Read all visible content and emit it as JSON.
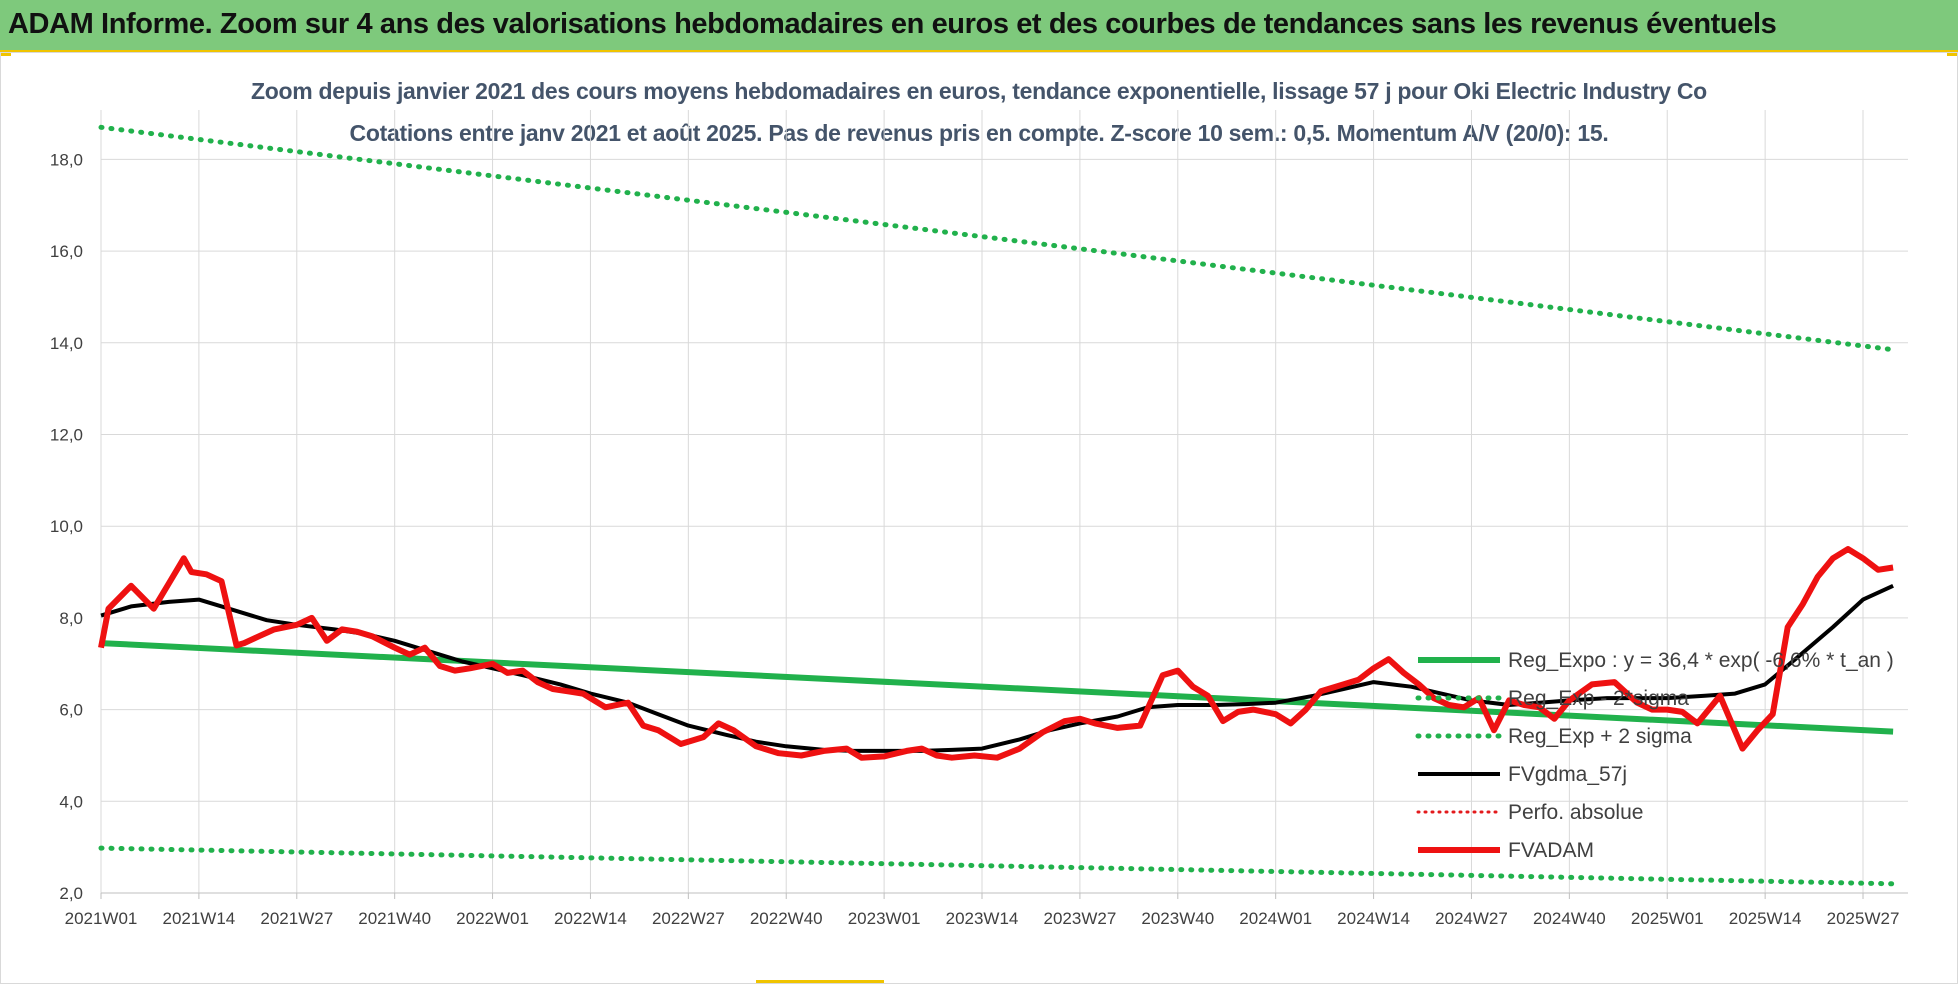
{
  "banner": {
    "title": "ADAM Informe. Zoom sur 4 ans des valorisations hebdomadaires en euros et des courbes de tendances sans les revenus éventuels"
  },
  "colors": {
    "banner_bg": "#7ec97c",
    "title_text": "#44546a",
    "reg_expo": "#21b14c",
    "fvgdma": "#000000",
    "fvadam": "#ee1111",
    "perfo": "#e31a1c",
    "gridline": "#d9d9d9"
  },
  "chart_data": {
    "type": "line",
    "title": "Zoom depuis janvier 2021 des cours moyens hebdomadaires en euros, tendance exponentielle, lissage 57 j pour Oki Electric Industry Co",
    "subtitle": "Cotations entre janv 2021 et août 2025.  Pas de revenus pris en compte. Z-score 10 sem.: 0,5. Momentum A/V (20/0): 15.",
    "xlabel": "",
    "ylabel": "",
    "ylim": [
      2,
      19
    ],
    "yticks": [
      "2,0",
      "4,0",
      "6,0",
      "8,0",
      "10,0",
      "12,0",
      "14,0",
      "16,0",
      "18,0"
    ],
    "x_tick_labels": [
      "2021W01",
      "2021W14",
      "2021W27",
      "2021W40",
      "2022W01",
      "2022W14",
      "2022W27",
      "2022W40",
      "2023W01",
      "2023W14",
      "2023W27",
      "2023W40",
      "2024W01",
      "2024W14",
      "2024W27",
      "2024W40",
      "2025W01",
      "2025W14",
      "2025W27"
    ],
    "grid": true,
    "legend_position": "right",
    "series": [
      {
        "name": "Reg_Expo : y = 36,4 * exp( -6,6% * t_an )",
        "style": "solid-thick",
        "x": [
          "2021W01",
          "2025W31"
        ],
        "y": [
          7.45,
          5.52
        ]
      },
      {
        "name": "Reg_Exp - 2*sigma",
        "style": "dotted",
        "x": [
          "2021W01",
          "2025W31"
        ],
        "y": [
          2.98,
          2.2
        ]
      },
      {
        "name": "Reg_Exp + 2 sigma",
        "style": "dotted",
        "x": [
          "2021W01",
          "2025W31"
        ],
        "y": [
          18.7,
          13.85
        ]
      },
      {
        "name": "FVgdma_57j",
        "style": "solid",
        "x": [
          "2021W01",
          "2021W05",
          "2021W10",
          "2021W14",
          "2021W18",
          "2021W23",
          "2021W27",
          "2021W32",
          "2021W36",
          "2021W40",
          "2021W45",
          "2021W49",
          "2022W01",
          "2022W05",
          "2022W10",
          "2022W14",
          "2022W19",
          "2022W23",
          "2022W27",
          "2022W32",
          "2022W36",
          "2022W40",
          "2022W45",
          "2022W49",
          "2023W01",
          "2023W06",
          "2023W10",
          "2023W14",
          "2023W19",
          "2023W23",
          "2023W27",
          "2023W32",
          "2023W36",
          "2023W40",
          "2023W45",
          "2023W49",
          "2024W01",
          "2024W06",
          "2024W10",
          "2024W14",
          "2024W19",
          "2024W23",
          "2024W27",
          "2024W32",
          "2024W36",
          "2024W40",
          "2024W45",
          "2024W49",
          "2025W01",
          "2025W06",
          "2025W10",
          "2025W14",
          "2025W18",
          "2025W23",
          "2025W27",
          "2025W31"
        ],
        "y": [
          8.05,
          8.25,
          8.35,
          8.4,
          8.2,
          7.95,
          7.85,
          7.75,
          7.65,
          7.5,
          7.25,
          7.05,
          6.9,
          6.75,
          6.55,
          6.35,
          6.15,
          5.9,
          5.65,
          5.45,
          5.3,
          5.2,
          5.12,
          5.1,
          5.1,
          5.1,
          5.12,
          5.15,
          5.35,
          5.55,
          5.7,
          5.85,
          6.05,
          6.1,
          6.1,
          6.12,
          6.15,
          6.3,
          6.45,
          6.6,
          6.5,
          6.35,
          6.2,
          6.1,
          6.15,
          6.2,
          6.25,
          6.25,
          6.25,
          6.3,
          6.35,
          6.55,
          7.1,
          7.8,
          8.4,
          8.7
        ]
      },
      {
        "name": "Perfo. absolue",
        "style": "dotted",
        "x": [],
        "y": []
      },
      {
        "name": "FVADAM",
        "style": "solid-thick",
        "x": [
          "2021W01",
          "2021W02",
          "2021W05",
          "2021W08",
          "2021W10",
          "2021W12",
          "2021W13",
          "2021W15",
          "2021W17",
          "2021W19",
          "2021W20",
          "2021W22",
          "2021W24",
          "2021W27",
          "2021W29",
          "2021W31",
          "2021W33",
          "2021W35",
          "2021W37",
          "2021W40",
          "2021W42",
          "2021W44",
          "2021W46",
          "2021W48",
          "2021W50",
          "2022W01",
          "2022W03",
          "2022W05",
          "2022W07",
          "2022W09",
          "2022W11",
          "2022W13",
          "2022W16",
          "2022W19",
          "2022W21",
          "2022W23",
          "2022W26",
          "2022W29",
          "2022W31",
          "2022W33",
          "2022W36",
          "2022W39",
          "2022W42",
          "2022W45",
          "2022W48",
          "2022W50",
          "2023W01",
          "2023W04",
          "2023W06",
          "2023W08",
          "2023W10",
          "2023W13",
          "2023W16",
          "2023W19",
          "2023W22",
          "2023W25",
          "2023W27",
          "2023W29",
          "2023W32",
          "2023W35",
          "2023W38",
          "2023W40",
          "2023W42",
          "2023W44",
          "2023W46",
          "2023W48",
          "2023W50",
          "2024W01",
          "2024W03",
          "2024W05",
          "2024W07",
          "2024W10",
          "2024W12",
          "2024W14",
          "2024W16",
          "2024W18",
          "2024W20",
          "2024W22",
          "2024W24",
          "2024W26",
          "2024W28",
          "2024W30",
          "2024W32",
          "2024W34",
          "2024W36",
          "2024W38",
          "2024W40",
          "2024W43",
          "2024W46",
          "2024W49",
          "2024W51",
          "2025W01",
          "2025W03",
          "2025W05",
          "2025W08",
          "2025W11",
          "2025W13",
          "2025W15",
          "2025W17",
          "2025W19",
          "2025W21",
          "2025W23",
          "2025W25",
          "2025W27",
          "2025W29",
          "2025W31"
        ],
        "y": [
          7.35,
          8.2,
          8.7,
          8.2,
          8.75,
          9.3,
          9.0,
          8.95,
          8.8,
          7.4,
          7.45,
          7.6,
          7.75,
          7.85,
          8.0,
          7.5,
          7.75,
          7.7,
          7.6,
          7.35,
          7.2,
          7.35,
          6.95,
          6.85,
          6.9,
          7.0,
          6.8,
          6.85,
          6.6,
          6.45,
          6.4,
          6.35,
          6.05,
          6.15,
          5.65,
          5.55,
          5.25,
          5.4,
          5.7,
          5.55,
          5.2,
          5.05,
          5.0,
          5.1,
          5.15,
          4.95,
          4.98,
          5.1,
          5.15,
          5.0,
          4.95,
          5.0,
          4.95,
          5.15,
          5.5,
          5.75,
          5.8,
          5.7,
          5.6,
          5.65,
          6.75,
          6.85,
          6.5,
          6.3,
          5.75,
          5.95,
          6.0,
          5.9,
          5.7,
          6.0,
          6.4,
          6.55,
          6.65,
          6.9,
          7.1,
          6.8,
          6.55,
          6.25,
          6.1,
          6.05,
          6.25,
          5.55,
          6.2,
          6.1,
          6.05,
          5.8,
          6.2,
          6.55,
          6.6,
          6.15,
          6.0,
          6.0,
          5.95,
          5.7,
          6.3,
          5.15,
          5.55,
          5.9,
          7.8,
          8.3,
          8.9,
          9.3,
          9.5,
          9.3,
          9.05,
          9.1
        ]
      }
    ]
  }
}
